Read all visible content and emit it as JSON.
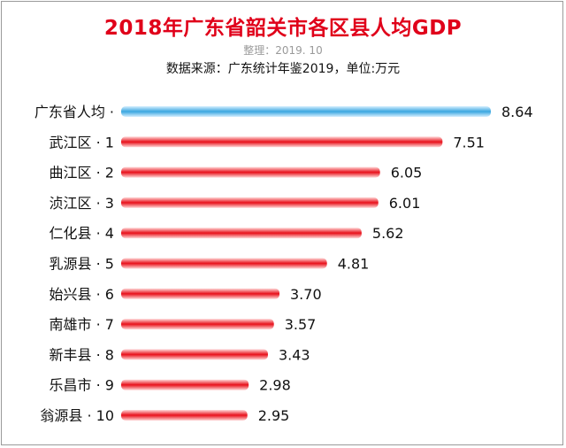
{
  "chart_data": {
    "type": "bar",
    "orientation": "horizontal",
    "title": "2018年广东省韶关市各区县人均GDP",
    "subtitle": "整理：2019. 10",
    "source_note": "数据来源：广东统计年鉴2019，单位:万元",
    "categories": [
      "广东省人均 ·",
      "武江区 · 1",
      "曲江区 · 2",
      "浈江区 · 3",
      "仁化县 · 4",
      "乳源县 · 5",
      "始兴县 · 6",
      "南雄市 · 7",
      "新丰县 · 8",
      "乐昌市 · 9",
      "翁源县 · 10"
    ],
    "values": [
      8.64,
      7.51,
      6.05,
      6.01,
      5.62,
      4.81,
      3.7,
      3.57,
      3.43,
      2.98,
      2.95
    ],
    "value_labels": [
      "8.64",
      "7.51",
      "6.05",
      "6.01",
      "5.62",
      "4.81",
      "3.70",
      "3.57",
      "3.43",
      "2.98",
      "2.95"
    ],
    "colors": {
      "highlight": "#3aa7e0",
      "bars": "#e8101a",
      "title": "#e0001a"
    },
    "highlight_index": 0,
    "xlim": [
      0,
      8.64
    ],
    "grid": false,
    "legend": "none"
  }
}
